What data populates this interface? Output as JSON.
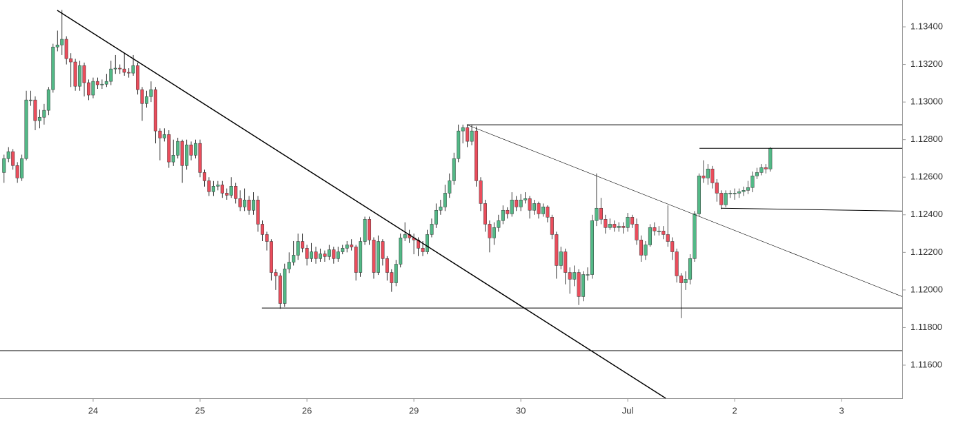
{
  "chart_data": {
    "type": "candlestick",
    "up_color": "#53b987",
    "down_color": "#eb4d5c",
    "wick_color": "#333333",
    "line_color": "#000000",
    "xlim": [
      -0.9,
      201.6
    ],
    "ylim": [
      1.11424,
      1.13543
    ],
    "xticks": [
      {
        "value": 20,
        "label": "24"
      },
      {
        "value": 44,
        "label": "25"
      },
      {
        "value": 68,
        "label": "26"
      },
      {
        "value": 92,
        "label": "29"
      },
      {
        "value": 116,
        "label": "30"
      },
      {
        "value": 140,
        "label": "Jul"
      },
      {
        "value": 164,
        "label": "2"
      },
      {
        "value": 188,
        "label": "3"
      }
    ],
    "yticks": [
      {
        "value": 1.116,
        "label": "1.11600"
      },
      {
        "value": 1.118,
        "label": "1.11800"
      },
      {
        "value": 1.12,
        "label": "1.12000"
      },
      {
        "value": 1.122,
        "label": "1.12200"
      },
      {
        "value": 1.124,
        "label": "1.12400"
      },
      {
        "value": 1.126,
        "label": "1.12600"
      },
      {
        "value": 1.128,
        "label": "1.12800"
      },
      {
        "value": 1.13,
        "label": "1.13000"
      },
      {
        "value": 1.132,
        "label": "1.13200"
      },
      {
        "value": 1.134,
        "label": "1.13400"
      }
    ],
    "trendlines": [
      {
        "x": [
          11.95,
          148.5
        ],
        "y": [
          1.13488,
          1.11424
        ],
        "width": 1.5
      },
      {
        "x": [
          103.9,
          201.6
        ],
        "y": [
          1.12879,
          1.11965
        ],
        "width": 0.6
      },
      {
        "x": [
          103.9,
          201.6
        ],
        "y": [
          1.12879,
          1.12879
        ],
        "width": 1
      },
      {
        "x": [
          156.1,
          201.6
        ],
        "y": [
          1.12754,
          1.12754
        ],
        "width": 1
      },
      {
        "x": [
          160.9,
          201.6
        ],
        "y": [
          1.12435,
          1.1242
        ],
        "width": 1
      },
      {
        "x": [
          57.9,
          201.6
        ],
        "y": [
          1.11904,
          1.11904
        ],
        "width": 1
      },
      {
        "x": [
          -0.9,
          201.6
        ],
        "y": [
          1.11677,
          1.11677
        ],
        "width": 1
      }
    ],
    "candles": [
      [
        1.12625,
        1.1272,
        1.1257,
        1.12699
      ],
      [
        1.12699,
        1.1276,
        1.1268,
        1.12736
      ],
      [
        1.12736,
        1.1275,
        1.1264,
        1.12662
      ],
      [
        1.12662,
        1.1268,
        1.1257,
        1.12596
      ],
      [
        1.12596,
        1.1272,
        1.1258,
        1.12699
      ],
      [
        1.12699,
        1.1306,
        1.1269,
        1.13011
      ],
      [
        1.13011,
        1.1306,
        1.1298,
        1.13011
      ],
      [
        1.13011,
        1.1303,
        1.1285,
        1.12901
      ],
      [
        1.12901,
        1.1296,
        1.1286,
        1.12919
      ],
      [
        1.12919,
        1.1299,
        1.1288,
        1.12956
      ],
      [
        1.12956,
        1.1308,
        1.1293,
        1.13066
      ],
      [
        1.13066,
        1.1331,
        1.1305,
        1.13293
      ],
      [
        1.13293,
        1.1338,
        1.1327,
        1.13304
      ],
      [
        1.13304,
        1.1349,
        1.1325,
        1.13334
      ],
      [
        1.13334,
        1.1335,
        1.132,
        1.13231
      ],
      [
        1.13231,
        1.1326,
        1.1308,
        1.13213
      ],
      [
        1.13213,
        1.1323,
        1.1306,
        1.13084
      ],
      [
        1.13084,
        1.1322,
        1.1306,
        1.13194
      ],
      [
        1.13194,
        1.1321,
        1.1303,
        1.13103
      ],
      [
        1.13103,
        1.1312,
        1.1301,
        1.13037
      ],
      [
        1.13037,
        1.1313,
        1.1302,
        1.1311
      ],
      [
        1.1311,
        1.1313,
        1.1307,
        1.13092
      ],
      [
        1.13092,
        1.1312,
        1.1307,
        1.13095
      ],
      [
        1.13095,
        1.1315,
        1.1308,
        1.1311
      ],
      [
        1.1311,
        1.1322,
        1.1309,
        1.13176
      ],
      [
        1.13176,
        1.1325,
        1.1315,
        1.1318
      ],
      [
        1.1318,
        1.132,
        1.1315,
        1.13176
      ],
      [
        1.13176,
        1.1326,
        1.1314,
        1.13158
      ],
      [
        1.13158,
        1.1318,
        1.1313,
        1.13154
      ],
      [
        1.13154,
        1.1325,
        1.1314,
        1.13194
      ],
      [
        1.13194,
        1.1321,
        1.1304,
        1.13066
      ],
      [
        1.13066,
        1.1308,
        1.129,
        1.12992
      ],
      [
        1.12992,
        1.1306,
        1.1297,
        1.13029
      ],
      [
        1.13029,
        1.1311,
        1.13,
        1.13066
      ],
      [
        1.13066,
        1.1308,
        1.1278,
        1.12846
      ],
      [
        1.12846,
        1.1286,
        1.1269,
        1.12809
      ],
      [
        1.12809,
        1.1286,
        1.1279,
        1.12827
      ],
      [
        1.12827,
        1.1285,
        1.1265,
        1.12681
      ],
      [
        1.12681,
        1.128,
        1.1266,
        1.12717
      ],
      [
        1.12717,
        1.1281,
        1.127,
        1.12791
      ],
      [
        1.12791,
        1.128,
        1.1257,
        1.12662
      ],
      [
        1.12662,
        1.128,
        1.1264,
        1.12772
      ],
      [
        1.12772,
        1.1279,
        1.1269,
        1.12717
      ],
      [
        1.12717,
        1.128,
        1.127,
        1.1278
      ],
      [
        1.1278,
        1.128,
        1.126,
        1.12625
      ],
      [
        1.12625,
        1.1264,
        1.1255,
        1.12581
      ],
      [
        1.12581,
        1.126,
        1.125,
        1.12523
      ],
      [
        1.12523,
        1.1258,
        1.125,
        1.12552
      ],
      [
        1.12552,
        1.1258,
        1.1253,
        1.12559
      ],
      [
        1.12559,
        1.1258,
        1.1249,
        1.12515
      ],
      [
        1.12515,
        1.1254,
        1.1248,
        1.12504
      ],
      [
        1.12504,
        1.126,
        1.1249,
        1.12552
      ],
      [
        1.12552,
        1.1257,
        1.1246,
        1.12486
      ],
      [
        1.12486,
        1.1253,
        1.1242,
        1.12442
      ],
      [
        1.12442,
        1.1254,
        1.1242,
        1.12479
      ],
      [
        1.12479,
        1.125,
        1.124,
        1.12424
      ],
      [
        1.12424,
        1.1252,
        1.124,
        1.12479
      ],
      [
        1.12479,
        1.125,
        1.1231,
        1.1235
      ],
      [
        1.1235,
        1.1237,
        1.1226,
        1.12295
      ],
      [
        1.12295,
        1.1231,
        1.1221,
        1.12258
      ],
      [
        1.12258,
        1.1227,
        1.1205,
        1.12093
      ],
      [
        1.12093,
        1.1211,
        1.12,
        1.12075
      ],
      [
        1.12075,
        1.1209,
        1.119,
        1.11928
      ],
      [
        1.11928,
        1.1214,
        1.1191,
        1.12112
      ],
      [
        1.12112,
        1.122,
        1.1209,
        1.12148
      ],
      [
        1.12148,
        1.1226,
        1.1213,
        1.12185
      ],
      [
        1.12185,
        1.123,
        1.1216,
        1.12258
      ],
      [
        1.12258,
        1.123,
        1.122,
        1.12222
      ],
      [
        1.12222,
        1.1224,
        1.1213,
        1.12167
      ],
      [
        1.12167,
        1.1225,
        1.1215,
        1.12203
      ],
      [
        1.12203,
        1.1223,
        1.1214,
        1.12167
      ],
      [
        1.12167,
        1.1222,
        1.1215,
        1.12192
      ],
      [
        1.12192,
        1.1221,
        1.1215,
        1.12178
      ],
      [
        1.12178,
        1.1224,
        1.1216,
        1.12214
      ],
      [
        1.12214,
        1.1223,
        1.1214,
        1.12167
      ],
      [
        1.12167,
        1.1223,
        1.1215,
        1.12203
      ],
      [
        1.12203,
        1.1224,
        1.1219,
        1.12222
      ],
      [
        1.12222,
        1.1226,
        1.122,
        1.1224
      ],
      [
        1.1224,
        1.1227,
        1.1221,
        1.12229
      ],
      [
        1.12229,
        1.1224,
        1.1205,
        1.12093
      ],
      [
        1.12093,
        1.1228,
        1.1207,
        1.12258
      ],
      [
        1.12258,
        1.1239,
        1.1224,
        1.12376
      ],
      [
        1.12376,
        1.1239,
        1.1224,
        1.12266
      ],
      [
        1.12266,
        1.1228,
        1.1206,
        1.12093
      ],
      [
        1.12093,
        1.1229,
        1.1208,
        1.12258
      ],
      [
        1.12258,
        1.1227,
        1.1213,
        1.12167
      ],
      [
        1.12167,
        1.1218,
        1.1205,
        1.12093
      ],
      [
        1.12093,
        1.1211,
        1.1199,
        1.12038
      ],
      [
        1.12038,
        1.1216,
        1.1202,
        1.12137
      ],
      [
        1.12137,
        1.123,
        1.1212,
        1.12277
      ],
      [
        1.12277,
        1.1236,
        1.1226,
        1.12295
      ],
      [
        1.12295,
        1.1232,
        1.1225,
        1.12277
      ],
      [
        1.12277,
        1.123,
        1.1219,
        1.12266
      ],
      [
        1.12266,
        1.1228,
        1.1218,
        1.12222
      ],
      [
        1.12222,
        1.1226,
        1.1218,
        1.12203
      ],
      [
        1.12203,
        1.1232,
        1.1219,
        1.12295
      ],
      [
        1.12295,
        1.1238,
        1.1228,
        1.1235
      ],
      [
        1.1235,
        1.1246,
        1.1233,
        1.12424
      ],
      [
        1.12424,
        1.1248,
        1.124,
        1.12442
      ],
      [
        1.12442,
        1.1256,
        1.1242,
        1.12515
      ],
      [
        1.12515,
        1.1262,
        1.1249,
        1.12581
      ],
      [
        1.12581,
        1.1273,
        1.1256,
        1.12699
      ],
      [
        1.12699,
        1.1288,
        1.1268,
        1.12846
      ],
      [
        1.12846,
        1.1288,
        1.1278,
        1.12864
      ],
      [
        1.12864,
        1.1288,
        1.1276,
        1.12791
      ],
      [
        1.12791,
        1.1288,
        1.1277,
        1.12846
      ],
      [
        1.12846,
        1.1287,
        1.1255,
        1.12581
      ],
      [
        1.12581,
        1.126,
        1.1242,
        1.1246
      ],
      [
        1.1246,
        1.1248,
        1.1231,
        1.1235
      ],
      [
        1.1235,
        1.1237,
        1.122,
        1.12277
      ],
      [
        1.12277,
        1.1236,
        1.1224,
        1.12332
      ],
      [
        1.12332,
        1.124,
        1.1231,
        1.12369
      ],
      [
        1.12369,
        1.1245,
        1.1235,
        1.12424
      ],
      [
        1.12424,
        1.1244,
        1.1238,
        1.12405
      ],
      [
        1.12405,
        1.1252,
        1.1239,
        1.12479
      ],
      [
        1.12479,
        1.125,
        1.1242,
        1.12442
      ],
      [
        1.12442,
        1.1251,
        1.1242,
        1.12479
      ],
      [
        1.12479,
        1.1252,
        1.1246,
        1.12486
      ],
      [
        1.12486,
        1.125,
        1.1238,
        1.12424
      ],
      [
        1.12424,
        1.1248,
        1.124,
        1.1246
      ],
      [
        1.1246,
        1.1247,
        1.1238,
        1.12405
      ],
      [
        1.12405,
        1.1246,
        1.1239,
        1.12442
      ],
      [
        1.12442,
        1.1245,
        1.1236,
        1.12387
      ],
      [
        1.12387,
        1.124,
        1.1227,
        1.12295
      ],
      [
        1.12295,
        1.1231,
        1.1206,
        1.1213
      ],
      [
        1.1213,
        1.1223,
        1.1211,
        1.12203
      ],
      [
        1.12203,
        1.1222,
        1.1203,
        1.12093
      ],
      [
        1.12093,
        1.1212,
        1.1198,
        1.12057
      ],
      [
        1.12057,
        1.1213,
        1.1202,
        1.12093
      ],
      [
        1.12093,
        1.1211,
        1.1192,
        1.11965
      ],
      [
        1.11965,
        1.121,
        1.1194,
        1.12082
      ],
      [
        1.12082,
        1.1212,
        1.1205,
        1.12082
      ],
      [
        1.12082,
        1.124,
        1.1206,
        1.12369
      ],
      [
        1.12369,
        1.1262,
        1.1234,
        1.12435
      ],
      [
        1.12435,
        1.1249,
        1.1235,
        1.12376
      ],
      [
        1.12376,
        1.124,
        1.123,
        1.12332
      ],
      [
        1.12332,
        1.1238,
        1.1232,
        1.1235
      ],
      [
        1.1235,
        1.1237,
        1.1231,
        1.12332
      ],
      [
        1.12332,
        1.1236,
        1.1231,
        1.12339
      ],
      [
        1.12339,
        1.1236,
        1.123,
        1.12332
      ],
      [
        1.12332,
        1.1241,
        1.1231,
        1.12387
      ],
      [
        1.12387,
        1.124,
        1.1233,
        1.1235
      ],
      [
        1.1235,
        1.1238,
        1.1224,
        1.12266
      ],
      [
        1.12266,
        1.1229,
        1.1215,
        1.12185
      ],
      [
        1.12185,
        1.1226,
        1.1216,
        1.1224
      ],
      [
        1.1224,
        1.1235,
        1.1223,
        1.12332
      ],
      [
        1.12332,
        1.1236,
        1.1229,
        1.12314
      ],
      [
        1.12314,
        1.1234,
        1.1229,
        1.12314
      ],
      [
        1.12314,
        1.1234,
        1.1227,
        1.12295
      ],
      [
        1.12295,
        1.1245,
        1.1223,
        1.12258
      ],
      [
        1.12258,
        1.1228,
        1.1216,
        1.12203
      ],
      [
        1.12203,
        1.1222,
        1.1204,
        1.12075
      ],
      [
        1.12075,
        1.1209,
        1.1185,
        1.12038
      ],
      [
        1.12038,
        1.121,
        1.12,
        1.12057
      ],
      [
        1.12057,
        1.1219,
        1.1203,
        1.12167
      ],
      [
        1.12167,
        1.1242,
        1.1215,
        1.12405
      ],
      [
        1.12405,
        1.1262,
        1.1239,
        1.12607
      ],
      [
        1.12607,
        1.1269,
        1.1257,
        1.12596
      ],
      [
        1.12596,
        1.1267,
        1.1256,
        1.12644
      ],
      [
        1.12644,
        1.1266,
        1.1254,
        1.1257
      ],
      [
        1.1257,
        1.1259,
        1.1247,
        1.12515
      ],
      [
        1.12515,
        1.1253,
        1.1243,
        1.12453
      ],
      [
        1.12453,
        1.1253,
        1.1244,
        1.12515
      ],
      [
        1.12515,
        1.1253,
        1.1249,
        1.12515
      ],
      [
        1.12515,
        1.1254,
        1.1248,
        1.12515
      ],
      [
        1.12515,
        1.1254,
        1.1249,
        1.12523
      ],
      [
        1.12523,
        1.1255,
        1.125,
        1.1253
      ],
      [
        1.1253,
        1.1258,
        1.1251,
        1.12545
      ],
      [
        1.12545,
        1.1263,
        1.1252,
        1.12607
      ],
      [
        1.12607,
        1.1265,
        1.1259,
        1.12625
      ],
      [
        1.12625,
        1.1267,
        1.1261,
        1.12651
      ],
      [
        1.12651,
        1.1267,
        1.1262,
        1.12644
      ],
      [
        1.12644,
        1.1276,
        1.1263,
        1.12754
      ]
    ]
  }
}
